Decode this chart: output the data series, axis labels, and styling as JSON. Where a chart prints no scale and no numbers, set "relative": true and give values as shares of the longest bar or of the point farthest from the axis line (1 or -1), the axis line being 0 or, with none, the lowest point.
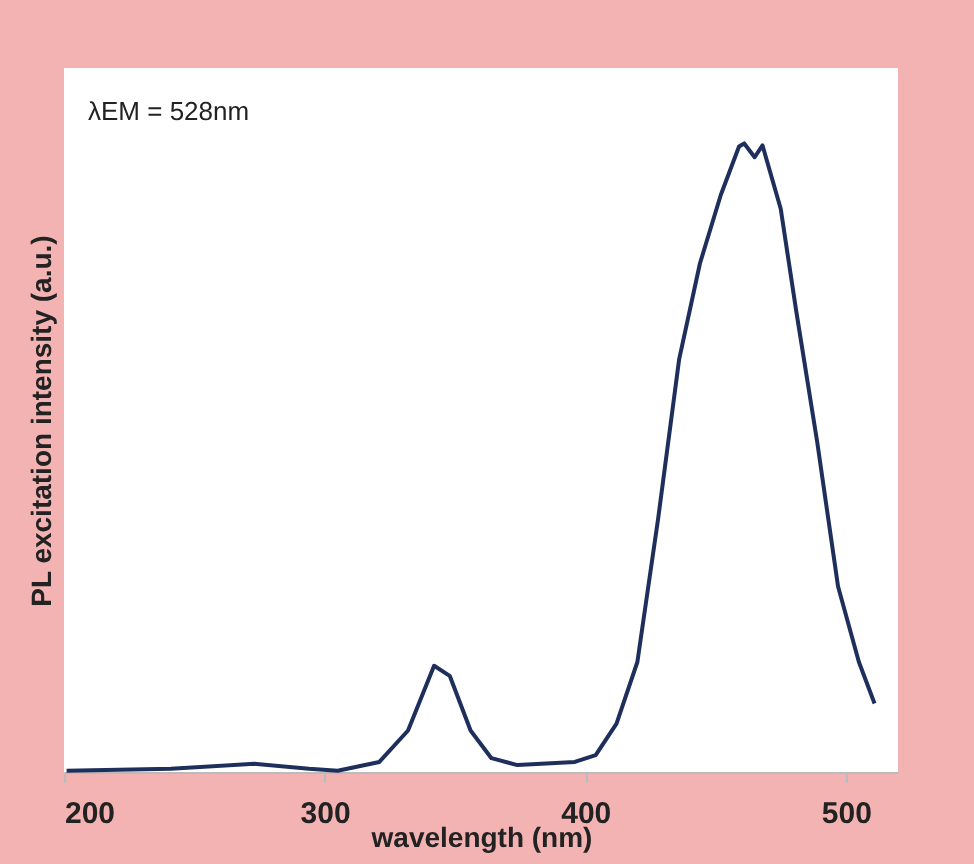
{
  "chart_data": {
    "type": "line",
    "relative": true,
    "xlabel": "wavelength (nm)",
    "ylabel": "PL excitation intensity (a.u.)",
    "annotations": [
      "λEM = 528nm"
    ],
    "xlim": [
      200,
      520
    ],
    "xticks": [
      200,
      300,
      400,
      500
    ],
    "x": [
      201,
      241,
      273,
      294,
      305,
      321,
      332,
      342,
      348,
      356,
      364,
      374,
      396,
      404,
      412,
      420,
      428,
      436,
      444,
      452,
      459,
      461,
      465,
      468,
      475,
      481,
      489,
      497,
      505,
      511
    ],
    "series": [
      {
        "color": "#1f2f5c",
        "values": [
          0.002,
          0.005,
          0.013,
          0.005,
          0.002,
          0.016,
          0.066,
          0.169,
          0.153,
          0.066,
          0.022,
          0.011,
          0.016,
          0.027,
          0.077,
          0.175,
          0.404,
          0.656,
          0.809,
          0.918,
          0.995,
          1.0,
          0.978,
          0.997,
          0.896,
          0.732,
          0.525,
          0.295,
          0.175,
          0.109
        ]
      }
    ],
    "grid": false,
    "legend": false,
    "marker": "none",
    "line_style": "solid"
  }
}
